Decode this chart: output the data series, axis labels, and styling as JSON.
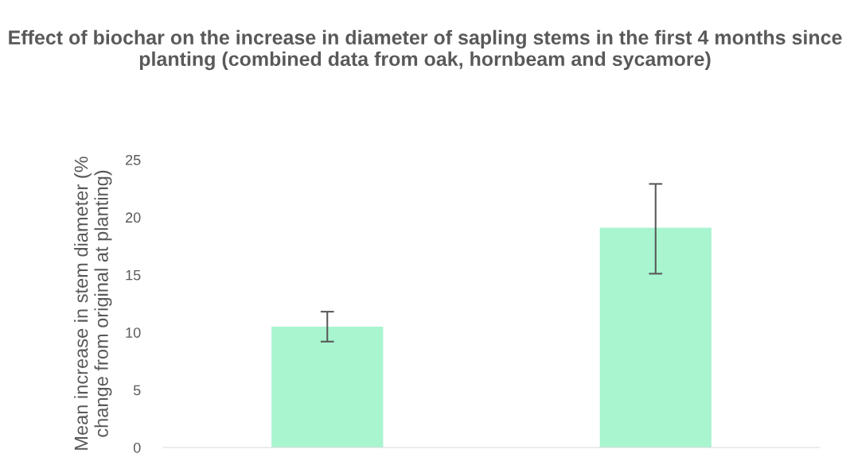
{
  "chart_data": {
    "type": "bar",
    "title": "Effect of biochar on the increase in diameter of sapling stems in the first 4 months since planting (combined data from oak, hornbeam and sycamore)",
    "ylabel": "Mean increase in stem diameter (% change from original at planting)",
    "categories": [
      null,
      null
    ],
    "values": [
      10.5,
      19.1
    ],
    "errors": [
      [
        9.2,
        11.8
      ],
      [
        15.1,
        22.9
      ]
    ],
    "color": "#a8f5d0",
    "ylim": [
      0,
      25
    ],
    "yticks": [
      0,
      5,
      10,
      15,
      20,
      25
    ],
    "grid": false,
    "legend": false
  }
}
